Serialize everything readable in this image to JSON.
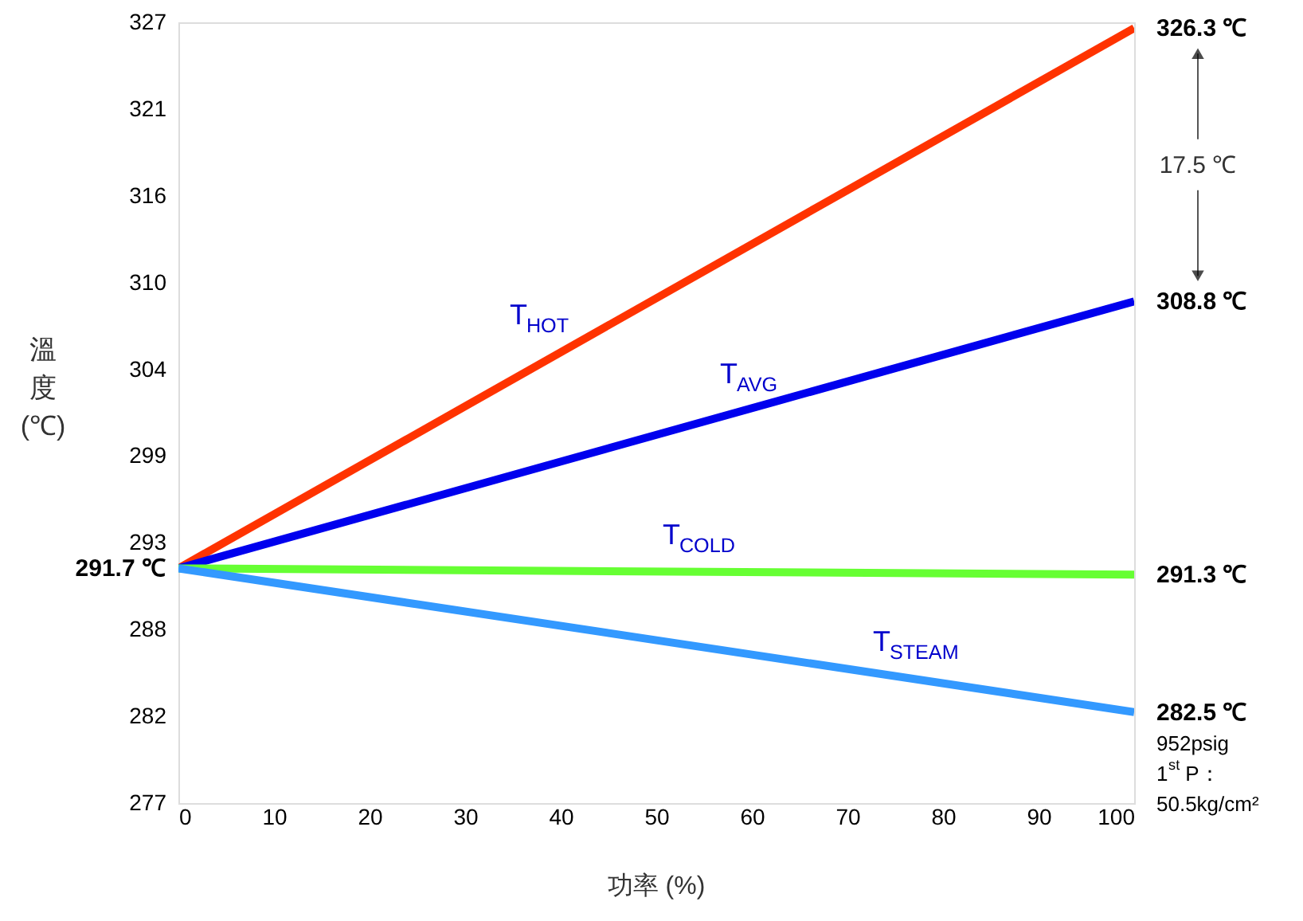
{
  "chart_data": {
    "type": "line",
    "xlabel": "功率 (%)",
    "ylabel": "溫度 (℃)",
    "x": [
      0,
      100
    ],
    "series": [
      {
        "name": "T$_{HOT}$",
        "color": "#ff3300",
        "values": [
          291.7,
          326.3
        ],
        "value_labels": [
          "291.7 ℃",
          "326.3 ℃"
        ]
      },
      {
        "name": "T$_{AVG}$",
        "color": "#0000ee",
        "values": [
          291.7,
          308.8
        ],
        "value_labels": [
          null,
          "308.8 ℃"
        ]
      },
      {
        "name": "T$_{COLD}$",
        "color": "#66ff33",
        "values": [
          291.7,
          291.3
        ],
        "value_labels": [
          null,
          "291.3 ℃"
        ]
      },
      {
        "name": "T$_{STEAM}$",
        "color": "#3399ff",
        "values": [
          291.7,
          282.5
        ],
        "value_labels": [
          null,
          "282.5 ℃"
        ]
      }
    ],
    "xlim": [
      0,
      100
    ],
    "xticks": [
      0,
      10,
      20,
      30,
      40,
      50,
      60,
      70,
      80,
      90,
      100
    ],
    "ylim": [
      276.67,
      326.67
    ],
    "yticks": [
      {
        "value": 276.67,
        "label": "277"
      },
      {
        "value": 282.22,
        "label": "282"
      },
      {
        "value": 287.78,
        "label": "288"
      },
      {
        "value": 293.33,
        "label": "293"
      },
      {
        "value": 298.89,
        "label": "299"
      },
      {
        "value": 304.44,
        "label": "304"
      },
      {
        "value": 310.0,
        "label": "310"
      },
      {
        "value": 315.56,
        "label": "316"
      },
      {
        "value": 321.11,
        "label": "321"
      },
      {
        "value": 326.67,
        "label": "327"
      }
    ],
    "annotations": [
      "17.5 ℃",
      "952psig",
      "1$^{st}$ P：",
      "50.5kg/cm²"
    ],
    "grid": false,
    "marker": "none",
    "line_style": "solid"
  }
}
